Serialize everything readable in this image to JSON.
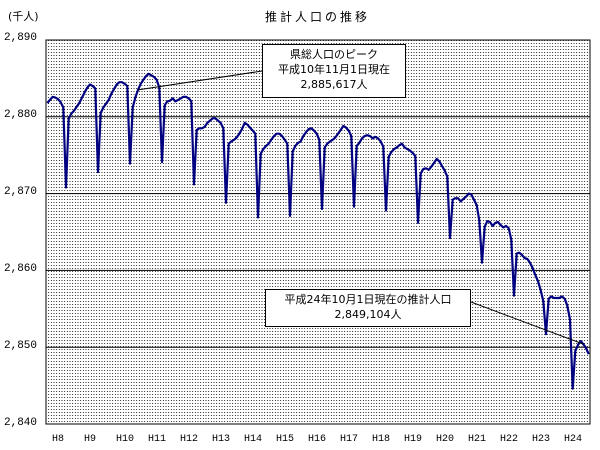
{
  "chart_data": {
    "type": "line",
    "title": "推計人口の推移",
    "ylabel": "(千人)",
    "ylim": [
      2840,
      2890
    ],
    "yticks": [
      "2,890",
      "2,880",
      "2,870",
      "2,860",
      "2,850",
      "2,840"
    ],
    "xticks": [
      "H8",
      "H9",
      "H10",
      "H11",
      "H12",
      "H13",
      "H14",
      "H15",
      "H16",
      "H17",
      "H18",
      "H19",
      "H20",
      "H21",
      "H22",
      "H23",
      "H24"
    ],
    "grid": true,
    "monthly_values_by_year": [
      [
        2881.8,
        2882.2,
        2882.6,
        2882.5,
        2882.3,
        2881.9,
        2881.2,
        2870.8,
        2879.8,
        2880.4,
        2880.8,
        2881.3
      ],
      [
        2881.8,
        2882.5,
        2883.2,
        2883.8,
        2884.2,
        2884.0,
        2883.7,
        2872.8,
        2880.5,
        2881.2,
        2881.7,
        2882.2
      ],
      [
        2883.0,
        2883.6,
        2884.2,
        2884.5,
        2884.5,
        2884.3,
        2884.0,
        2873.9,
        2881.2,
        2882.5,
        2883.5,
        2884.3
      ],
      [
        2884.8,
        2885.3,
        2885.6,
        2885.4,
        2885.2,
        2884.8,
        2883.8,
        2874.1,
        2881.5,
        2882.0,
        2882.1,
        2882.4
      ],
      [
        2882.0,
        2882.2,
        2882.4,
        2882.6,
        2882.6,
        2882.4,
        2882.0,
        2871.2,
        2878.3,
        2878.5,
        2878.5,
        2878.7
      ],
      [
        2879.2,
        2879.5,
        2879.8,
        2879.8,
        2879.5,
        2879.2,
        2878.5,
        2868.8,
        2876.5,
        2876.8,
        2877.0,
        2877.3
      ],
      [
        2877.8,
        2878.4,
        2879.2,
        2879.0,
        2878.6,
        2878.2,
        2877.8,
        2866.9,
        2875.2,
        2875.8,
        2876.2,
        2876.5
      ],
      [
        2877.0,
        2877.5,
        2877.8,
        2877.8,
        2877.5,
        2877.0,
        2876.5,
        2867.1,
        2875.5,
        2876.2,
        2876.6,
        2876.8
      ],
      [
        2877.5,
        2878.0,
        2878.4,
        2878.5,
        2878.2,
        2877.8,
        2877.0,
        2868.0,
        2876.0,
        2876.5,
        2876.8,
        2877.0
      ],
      [
        2877.3,
        2877.8,
        2878.3,
        2878.8,
        2878.6,
        2878.2,
        2877.5,
        2868.3,
        2876.2,
        2876.6,
        2877.2,
        2877.5
      ],
      [
        2877.6,
        2877.5,
        2877.2,
        2877.4,
        2877.2,
        2876.8,
        2876.1,
        2867.8,
        2874.8,
        2875.4,
        2875.8,
        2876.0
      ],
      [
        2876.3,
        2876.5,
        2876.0,
        2875.8,
        2875.6,
        2875.3,
        2874.9,
        2866.2,
        2872.6,
        2873.2,
        2873.3,
        2873.1
      ],
      [
        2873.5,
        2874.0,
        2874.5,
        2874.2,
        2873.6,
        2873.0,
        2872.2,
        2864.2,
        2869.2,
        2869.4,
        2869.4,
        2869.0
      ],
      [
        2869.3,
        2869.6,
        2870.0,
        2869.9,
        2869.2,
        2868.5,
        2866.5,
        2861.0,
        2865.7,
        2866.4,
        2866.3,
        2865.8
      ],
      [
        2866.2,
        2866.3,
        2865.9,
        2865.6,
        2865.8,
        2865.5,
        2864.0,
        2856.7,
        2862.2,
        2862.3,
        2862.0,
        2861.6
      ],
      [
        2861.5,
        2861.0,
        2860.3,
        2859.4,
        2858.6,
        2857.4,
        2856.0,
        2851.7,
        2856.3,
        2856.6,
        2856.4,
        2856.4
      ],
      [
        2856.4,
        2856.6,
        2856.3,
        2855.4,
        2853.6,
        2844.6,
        2849.5,
        2850.3,
        2850.8,
        2850.4,
        2849.9,
        2849.1
      ]
    ],
    "annotations": [
      {
        "lines": [
          "県総人口のピーク",
          "平成10年11月1日現在",
          "2,885,617人"
        ]
      },
      {
        "lines": [
          "平成24年10月1日現在の推計人口",
          "2,849,104人"
        ]
      }
    ],
    "series_color": "#000080"
  }
}
